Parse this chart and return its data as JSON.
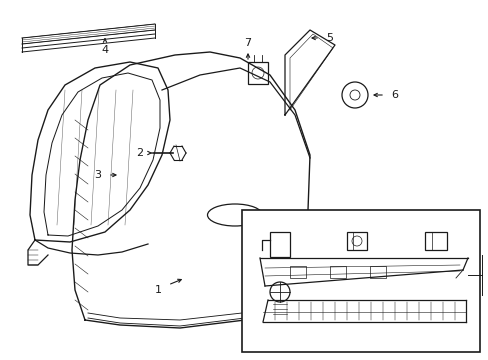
{
  "bg_color": "#ffffff",
  "line_color": "#1a1a1a",
  "lw": 0.9
}
